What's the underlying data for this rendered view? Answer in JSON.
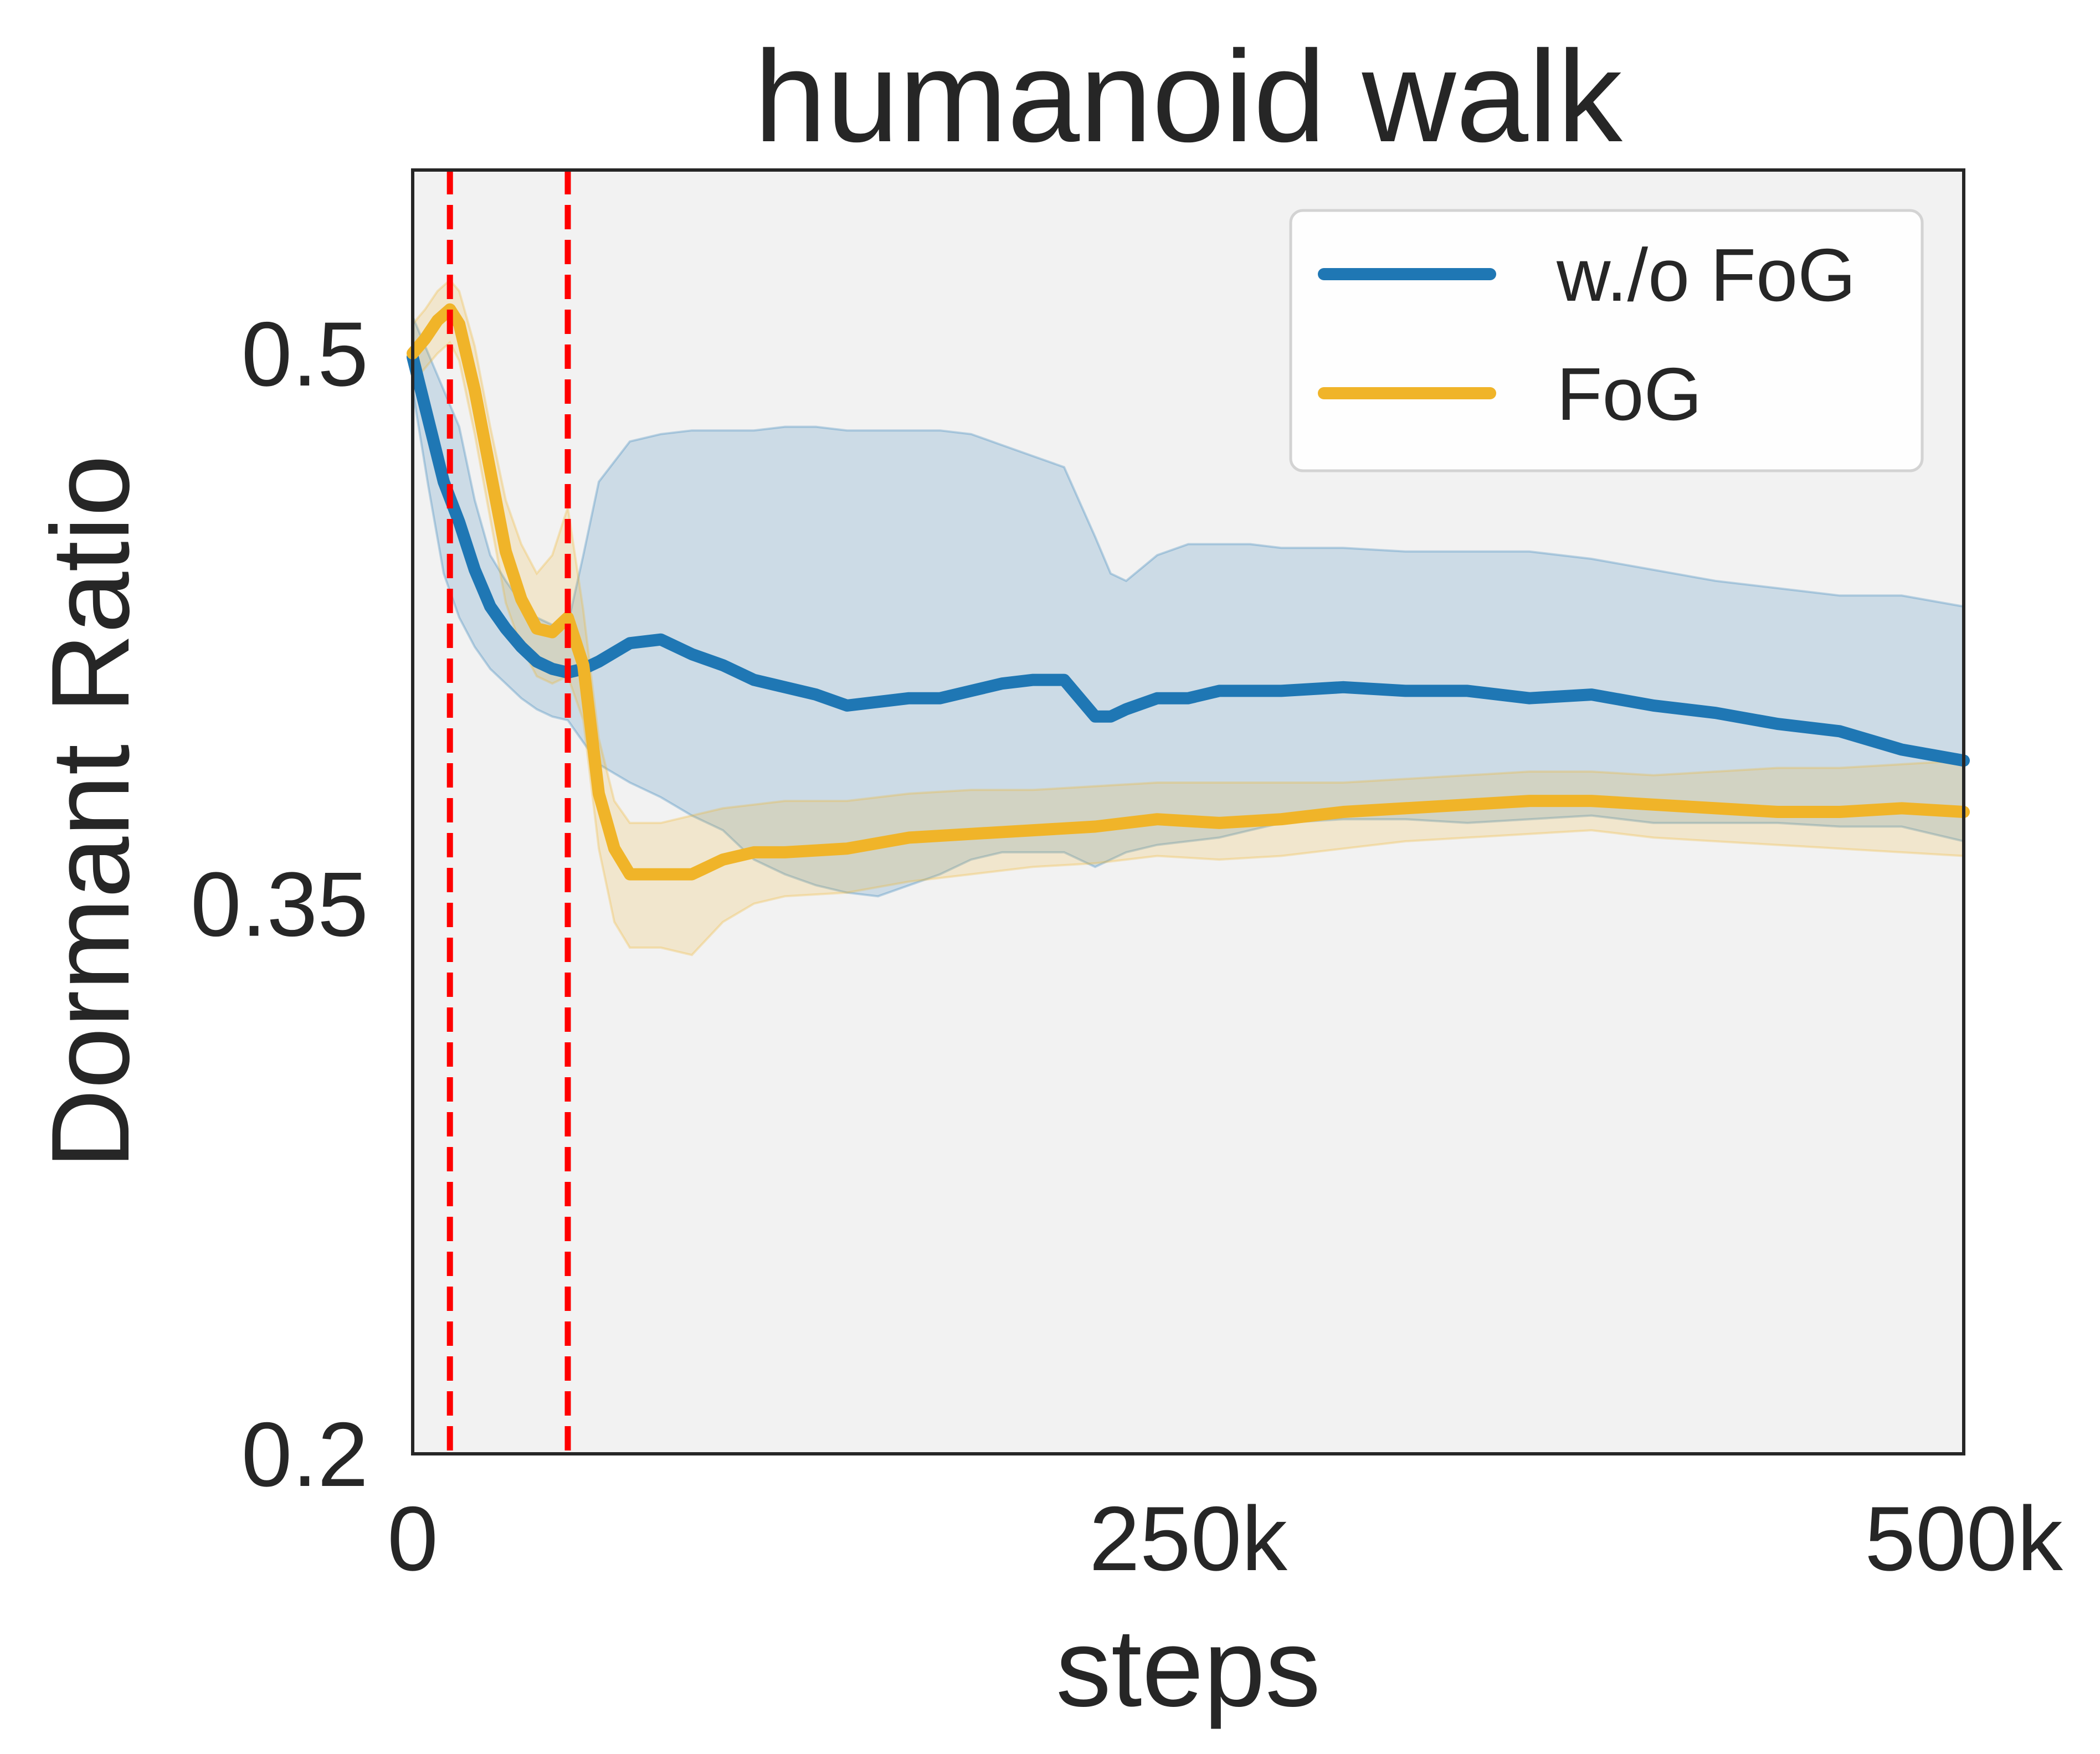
{
  "chart_data": {
    "type": "line",
    "title": "humanoid walk",
    "xlabel": "steps",
    "ylabel": "Dormant Ratio",
    "xlim": [
      0,
      500000
    ],
    "ylim": [
      0.2,
      0.55
    ],
    "x_ticks": [
      {
        "value": 0,
        "label": "0"
      },
      {
        "value": 250000,
        "label": "250k"
      },
      {
        "value": 500000,
        "label": "500k"
      }
    ],
    "y_ticks": [
      {
        "value": 0.2,
        "label": "0.2"
      },
      {
        "value": 0.35,
        "label": "0.35"
      },
      {
        "value": 0.5,
        "label": "0.5"
      }
    ],
    "grid": false,
    "legend_position": "top-right",
    "vlines": [
      {
        "x": 12000,
        "color": "#ff0000",
        "style": "dashed"
      },
      {
        "x": 50000,
        "color": "#ff0000",
        "style": "dashed"
      }
    ],
    "series": [
      {
        "name": "w./o FoG",
        "color": "#1f77b4",
        "x": [
          0,
          5000,
          10000,
          15000,
          20000,
          25000,
          30000,
          35000,
          40000,
          45000,
          50000,
          55000,
          60000,
          70000,
          80000,
          90000,
          100000,
          110000,
          120000,
          130000,
          140000,
          150000,
          160000,
          170000,
          180000,
          190000,
          200000,
          210000,
          220000,
          225000,
          230000,
          240000,
          250000,
          260000,
          270000,
          280000,
          300000,
          320000,
          340000,
          360000,
          380000,
          400000,
          420000,
          440000,
          460000,
          480000,
          500000
        ],
        "y": [
          0.499,
          0.482,
          0.465,
          0.454,
          0.441,
          0.431,
          0.425,
          0.42,
          0.416,
          0.414,
          0.413,
          0.414,
          0.416,
          0.421,
          0.422,
          0.418,
          0.415,
          0.411,
          0.409,
          0.407,
          0.404,
          0.405,
          0.406,
          0.406,
          0.408,
          0.41,
          0.411,
          0.411,
          0.401,
          0.401,
          0.403,
          0.406,
          0.406,
          0.408,
          0.408,
          0.408,
          0.409,
          0.408,
          0.408,
          0.406,
          0.407,
          0.404,
          0.402,
          0.399,
          0.397,
          0.392,
          0.389
        ],
        "band_upper": [
          0.51,
          0.5,
          0.49,
          0.48,
          0.46,
          0.445,
          0.438,
          0.432,
          0.428,
          0.426,
          0.426,
          0.445,
          0.465,
          0.476,
          0.478,
          0.479,
          0.479,
          0.479,
          0.48,
          0.48,
          0.479,
          0.479,
          0.479,
          0.479,
          0.478,
          0.475,
          0.472,
          0.469,
          0.45,
          0.44,
          0.438,
          0.445,
          0.448,
          0.448,
          0.448,
          0.447,
          0.447,
          0.446,
          0.446,
          0.446,
          0.444,
          0.441,
          0.438,
          0.436,
          0.434,
          0.434,
          0.431
        ],
        "band_lower": [
          0.49,
          0.464,
          0.44,
          0.428,
          0.42,
          0.414,
          0.41,
          0.406,
          0.403,
          0.401,
          0.4,
          0.394,
          0.388,
          0.383,
          0.379,
          0.374,
          0.37,
          0.362,
          0.358,
          0.355,
          0.353,
          0.352,
          0.355,
          0.358,
          0.362,
          0.364,
          0.364,
          0.364,
          0.36,
          0.362,
          0.364,
          0.366,
          0.367,
          0.368,
          0.37,
          0.372,
          0.373,
          0.373,
          0.372,
          0.373,
          0.374,
          0.372,
          0.372,
          0.372,
          0.371,
          0.371,
          0.367
        ]
      },
      {
        "name": "FoG",
        "color": "#f0b429",
        "x": [
          0,
          4000,
          8000,
          12000,
          15000,
          20000,
          25000,
          30000,
          35000,
          40000,
          45000,
          50000,
          55000,
          60000,
          65000,
          70000,
          80000,
          90000,
          100000,
          110000,
          120000,
          140000,
          160000,
          180000,
          200000,
          220000,
          240000,
          260000,
          280000,
          300000,
          320000,
          340000,
          360000,
          380000,
          400000,
          420000,
          440000,
          460000,
          480000,
          500000
        ],
        "y": [
          0.5,
          0.504,
          0.509,
          0.512,
          0.508,
          0.49,
          0.468,
          0.446,
          0.433,
          0.425,
          0.424,
          0.428,
          0.415,
          0.38,
          0.365,
          0.358,
          0.358,
          0.358,
          0.362,
          0.364,
          0.364,
          0.365,
          0.368,
          0.369,
          0.37,
          0.371,
          0.373,
          0.372,
          0.373,
          0.375,
          0.376,
          0.377,
          0.378,
          0.378,
          0.377,
          0.376,
          0.375,
          0.375,
          0.376,
          0.375
        ],
        "band_upper": [
          0.508,
          0.512,
          0.517,
          0.52,
          0.517,
          0.502,
          0.48,
          0.46,
          0.448,
          0.44,
          0.445,
          0.458,
          0.43,
          0.395,
          0.378,
          0.372,
          0.372,
          0.374,
          0.376,
          0.377,
          0.378,
          0.378,
          0.38,
          0.381,
          0.381,
          0.382,
          0.383,
          0.383,
          0.383,
          0.383,
          0.384,
          0.385,
          0.386,
          0.386,
          0.385,
          0.386,
          0.387,
          0.387,
          0.388,
          0.389
        ],
        "band_lower": [
          0.492,
          0.496,
          0.5,
          0.503,
          0.498,
          0.478,
          0.455,
          0.432,
          0.42,
          0.412,
          0.41,
          0.412,
          0.4,
          0.365,
          0.345,
          0.338,
          0.338,
          0.336,
          0.345,
          0.35,
          0.352,
          0.353,
          0.356,
          0.358,
          0.36,
          0.361,
          0.363,
          0.362,
          0.363,
          0.365,
          0.367,
          0.368,
          0.369,
          0.37,
          0.368,
          0.367,
          0.366,
          0.365,
          0.364,
          0.363
        ]
      }
    ]
  }
}
